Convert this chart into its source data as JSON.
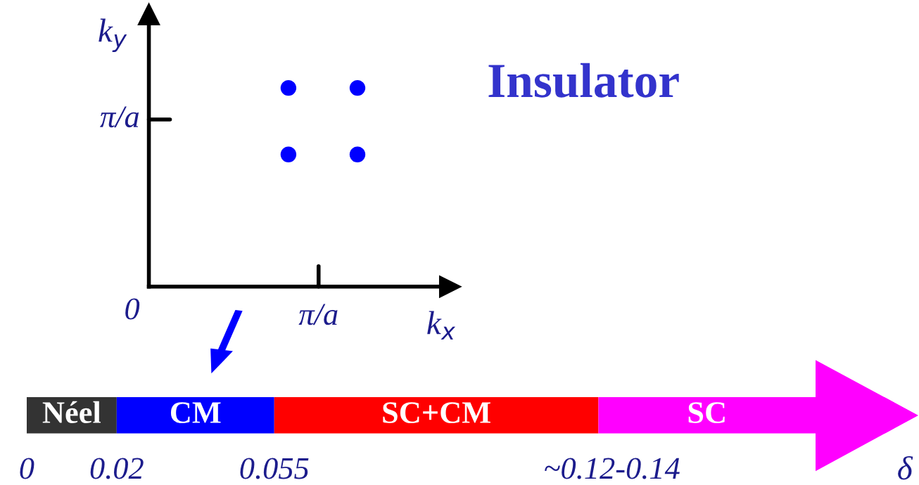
{
  "chart_data": [
    {
      "type": "other",
      "xlabel": "k$_{x}$",
      "ylabel": "k$_{y}$",
      "annotations": [
        "Insulator",
        "0",
        "π/a",
        "π/a"
      ]
    },
    {
      "type": "bar",
      "orientation": "horizontal",
      "stacked": true,
      "xlabel": "δ",
      "categories": [
        null
      ],
      "xlim": [
        0,
        0.198
      ],
      "xticks": [
        0,
        0.02,
        0.055,
        {
          "value": 0.13,
          "label": "~0.12-0.14"
        }
      ],
      "series": [
        {
          "name": "Néel",
          "color": "#333333",
          "values": [
            0.02
          ]
        },
        {
          "name": "CM",
          "color": "#0000ff",
          "values": [
            0.035
          ]
        },
        {
          "name": "SC+CM",
          "color": "#ff0000",
          "values": [
            0.072
          ]
        },
        {
          "name": "SC",
          "color": "#ff00ff",
          "values": [
            0.071
          ]
        }
      ]
    }
  ]
}
